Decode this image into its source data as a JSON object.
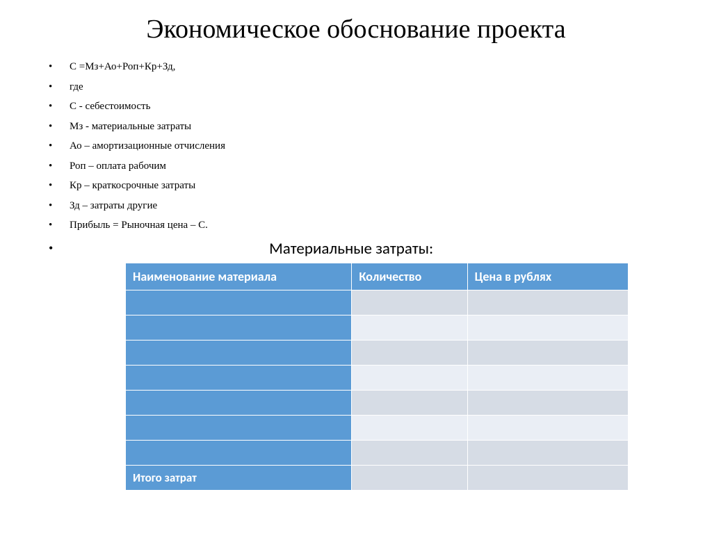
{
  "title": "Экономическое обоснование проекта",
  "bullets": [
    "С =Мз+Ао+Роп+Кр+Зд,",
    "где",
    "С - себестоимость",
    "Мз - материальные затраты",
    "Ао – амортизационные отчисления",
    "Роп – оплата рабочим",
    "Кр – краткосрочные затраты",
    "Зд – затраты другие",
    "Прибыль = Рыночная цена – С."
  ],
  "subtitle": "Материальные затраты:",
  "table": {
    "columns": [
      "Наименование материала",
      "Количество",
      "Цена в рублях"
    ],
    "rows": [
      [
        "",
        "",
        ""
      ],
      [
        "",
        "",
        ""
      ],
      [
        "",
        "",
        ""
      ],
      [
        "",
        "",
        ""
      ],
      [
        "",
        "",
        ""
      ],
      [
        "",
        "",
        ""
      ],
      [
        "",
        "",
        ""
      ]
    ],
    "footer_label": "Итого затрат",
    "header_bg": "#5b9bd5",
    "header_fg": "#ffffff",
    "col1_bg": "#5b9bd5",
    "row_odd_bg": "#d6dce5",
    "row_even_bg": "#eaeef5",
    "border_color": "#ffffff"
  }
}
